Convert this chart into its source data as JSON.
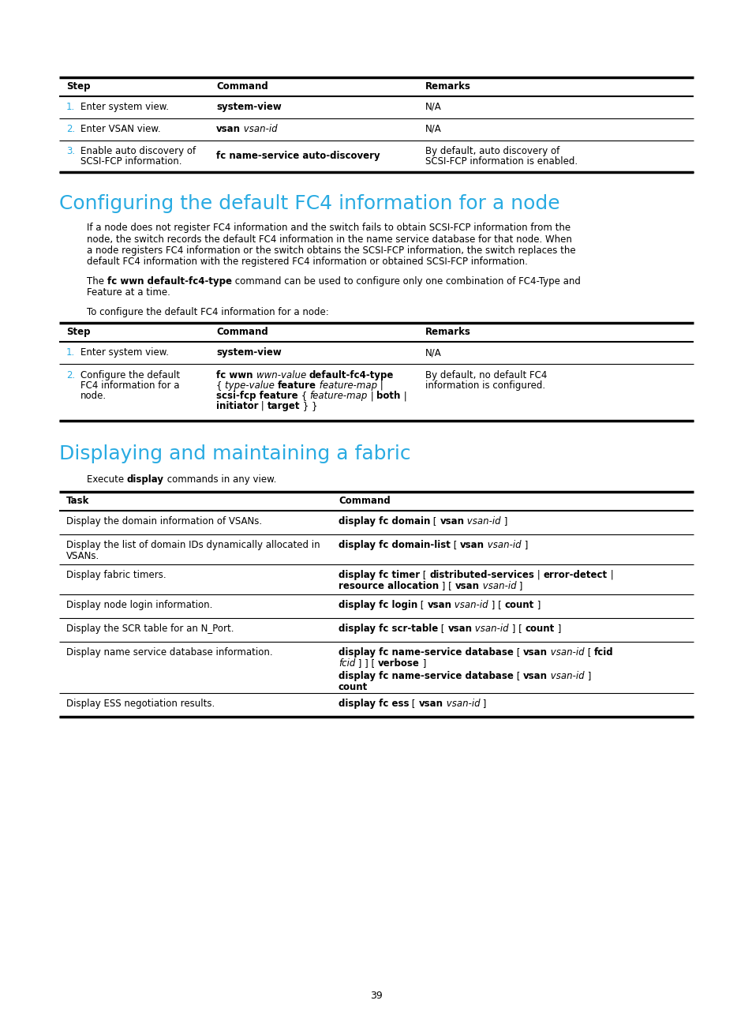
{
  "bg_color": "#ffffff",
  "text_color": "#000000",
  "cyan_color": "#29abe2",
  "blue_number_color": "#29abe2",
  "page_number": "39",
  "section1_title": "Configuring the default FC4 information for a node",
  "section2_title": "Displaying and maintaining a fabric"
}
